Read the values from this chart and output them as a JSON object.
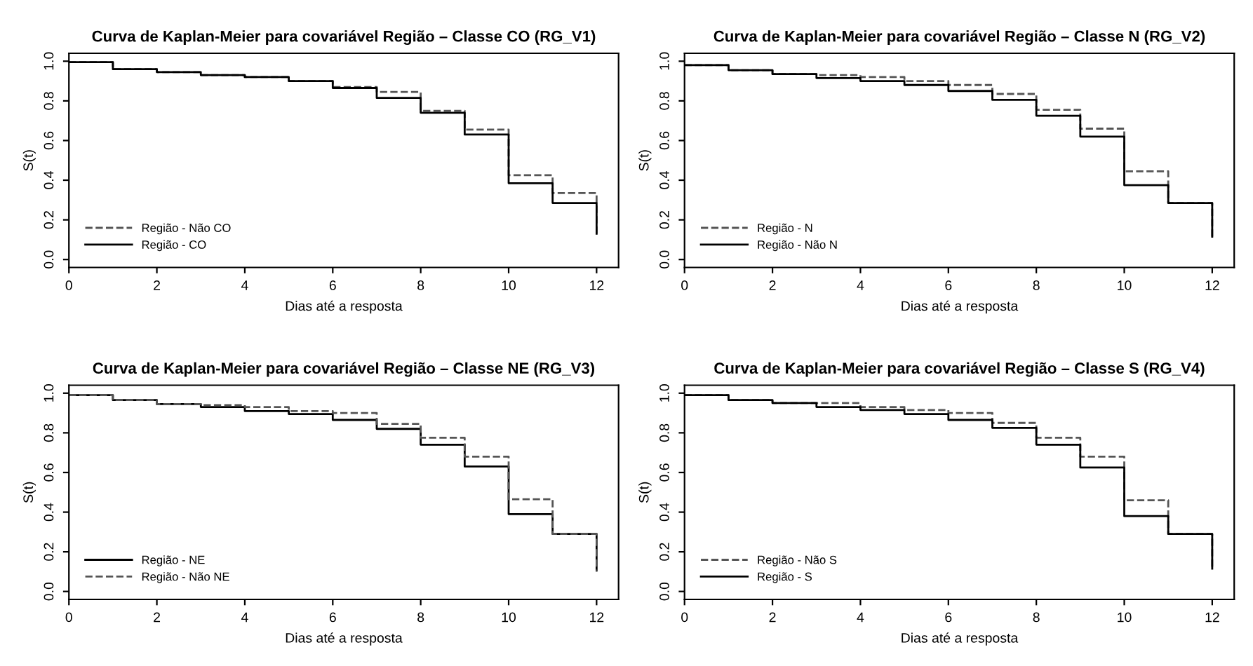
{
  "chart_data": [
    {
      "type": "step",
      "title": "Curva de Kaplan-Meier para covariável Região – Classe CO (RG_V1)",
      "xlabel": "Dias até a resposta",
      "ylabel": "S(t)",
      "x": [
        0,
        1,
        2,
        3,
        4,
        5,
        6,
        7,
        8,
        9,
        10,
        11,
        12
      ],
      "series": [
        {
          "name": "Região - Não CO",
          "color": "#555555",
          "line_style": "dashed",
          "values": [
            0.995,
            0.96,
            0.945,
            0.93,
            0.92,
            0.9,
            0.87,
            0.845,
            0.75,
            0.655,
            0.425,
            0.335,
            0.13
          ]
        },
        {
          "name": "Região - CO",
          "color": "#000000",
          "line_style": "solid",
          "values": [
            0.995,
            0.96,
            0.945,
            0.93,
            0.92,
            0.9,
            0.865,
            0.815,
            0.74,
            0.63,
            0.385,
            0.285,
            0.13
          ]
        }
      ],
      "xlim": [
        0,
        12.5
      ],
      "ylim": [
        -0.04,
        1.04
      ],
      "xticks": [
        0,
        2,
        4,
        6,
        8,
        10,
        12
      ],
      "yticks": [
        {
          "value": 0,
          "label": "0.0"
        },
        {
          "value": 0.2,
          "label": "0.2"
        },
        {
          "value": 0.4,
          "label": "0.4"
        },
        {
          "value": 0.6,
          "label": "0.6"
        },
        {
          "value": 0.8,
          "label": "0.8"
        },
        {
          "value": 1,
          "label": "1.0"
        }
      ],
      "legend": "bottom left",
      "grid": false
    },
    {
      "type": "step",
      "title": "Curva de Kaplan-Meier para covariável Região – Classe N (RG_V2)",
      "xlabel": "Dias até a resposta",
      "ylabel": "S(t)",
      "x": [
        0,
        1,
        2,
        3,
        4,
        5,
        6,
        7,
        8,
        9,
        10,
        11,
        12
      ],
      "series": [
        {
          "name": "Região - N",
          "color": "#555555",
          "line_style": "dashed",
          "values": [
            0.98,
            0.955,
            0.935,
            0.93,
            0.92,
            0.9,
            0.88,
            0.835,
            0.755,
            0.66,
            0.445,
            0.285,
            0.115
          ]
        },
        {
          "name": "Região - Não N",
          "color": "#000000",
          "line_style": "solid",
          "values": [
            0.98,
            0.955,
            0.935,
            0.915,
            0.9,
            0.88,
            0.85,
            0.805,
            0.725,
            0.62,
            0.375,
            0.285,
            0.115
          ]
        }
      ],
      "xlim": [
        0,
        12.5
      ],
      "ylim": [
        -0.04,
        1.04
      ],
      "xticks": [
        0,
        2,
        4,
        6,
        8,
        10,
        12
      ],
      "yticks": [
        {
          "value": 0,
          "label": "0.0"
        },
        {
          "value": 0.2,
          "label": "0.2"
        },
        {
          "value": 0.4,
          "label": "0.4"
        },
        {
          "value": 0.6,
          "label": "0.6"
        },
        {
          "value": 0.8,
          "label": "0.8"
        },
        {
          "value": 1,
          "label": "1.0"
        }
      ],
      "legend": "bottom left",
      "grid": false
    },
    {
      "type": "step",
      "title": "Curva de Kaplan-Meier para covariável Região – Classe NE (RG_V3)",
      "xlabel": "Dias até a resposta",
      "ylabel": "S(t)",
      "x": [
        0,
        1,
        2,
        3,
        4,
        5,
        6,
        7,
        8,
        9,
        10,
        11,
        12
      ],
      "series": [
        {
          "name": "Região - NE",
          "color": "#000000",
          "line_style": "solid",
          "values": [
            0.99,
            0.965,
            0.945,
            0.93,
            0.91,
            0.895,
            0.865,
            0.82,
            0.74,
            0.63,
            0.39,
            0.29,
            0.105
          ]
        },
        {
          "name": "Região - Não NE",
          "color": "#555555",
          "line_style": "dashed",
          "values": [
            0.99,
            0.965,
            0.945,
            0.94,
            0.93,
            0.91,
            0.9,
            0.845,
            0.775,
            0.68,
            0.465,
            0.29,
            0.105
          ]
        }
      ],
      "xlim": [
        0,
        12.5
      ],
      "ylim": [
        -0.04,
        1.04
      ],
      "xticks": [
        0,
        2,
        4,
        6,
        8,
        10,
        12
      ],
      "yticks": [
        {
          "value": 0,
          "label": "0.0"
        },
        {
          "value": 0.2,
          "label": "0.2"
        },
        {
          "value": 0.4,
          "label": "0.4"
        },
        {
          "value": 0.6,
          "label": "0.6"
        },
        {
          "value": 0.8,
          "label": "0.8"
        },
        {
          "value": 1,
          "label": "1.0"
        }
      ],
      "legend": "bottom left",
      "grid": false
    },
    {
      "type": "step",
      "title": "Curva de Kaplan-Meier para covariável Região – Classe S (RG_V4)",
      "xlabel": "Dias até a resposta",
      "ylabel": "S(t)",
      "x": [
        0,
        1,
        2,
        3,
        4,
        5,
        6,
        7,
        8,
        9,
        10,
        11,
        12
      ],
      "series": [
        {
          "name": "Região - Não S",
          "color": "#555555",
          "line_style": "dashed",
          "values": [
            0.99,
            0.965,
            0.95,
            0.95,
            0.93,
            0.915,
            0.9,
            0.85,
            0.775,
            0.68,
            0.46,
            0.29,
            0.115
          ]
        },
        {
          "name": "Região - S",
          "color": "#000000",
          "line_style": "solid",
          "values": [
            0.99,
            0.965,
            0.95,
            0.93,
            0.915,
            0.895,
            0.865,
            0.825,
            0.74,
            0.625,
            0.38,
            0.29,
            0.115
          ]
        }
      ],
      "xlim": [
        0,
        12.5
      ],
      "ylim": [
        -0.04,
        1.04
      ],
      "xticks": [
        0,
        2,
        4,
        6,
        8,
        10,
        12
      ],
      "yticks": [
        {
          "value": 0,
          "label": "0.0"
        },
        {
          "value": 0.2,
          "label": "0.2"
        },
        {
          "value": 0.4,
          "label": "0.4"
        },
        {
          "value": 0.6,
          "label": "0.6"
        },
        {
          "value": 0.8,
          "label": "0.8"
        },
        {
          "value": 1,
          "label": "1.0"
        }
      ],
      "legend": "bottom left",
      "grid": false
    }
  ]
}
